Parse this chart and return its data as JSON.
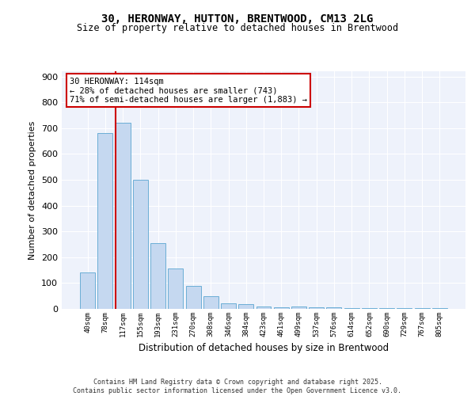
{
  "title_line1": "30, HERONWAY, HUTTON, BRENTWOOD, CM13 2LG",
  "title_line2": "Size of property relative to detached houses in Brentwood",
  "xlabel": "Distribution of detached houses by size in Brentwood",
  "ylabel": "Number of detached properties",
  "bar_color": "#c5d8f0",
  "bar_edge_color": "#6baed6",
  "categories": [
    "40sqm",
    "78sqm",
    "117sqm",
    "155sqm",
    "193sqm",
    "231sqm",
    "270sqm",
    "308sqm",
    "346sqm",
    "384sqm",
    "423sqm",
    "461sqm",
    "499sqm",
    "537sqm",
    "576sqm",
    "614sqm",
    "652sqm",
    "690sqm",
    "729sqm",
    "767sqm",
    "805sqm"
  ],
  "values": [
    140,
    680,
    720,
    500,
    255,
    157,
    88,
    50,
    20,
    18,
    10,
    7,
    10,
    7,
    5,
    3,
    2,
    3,
    2,
    2,
    3
  ],
  "vline_color": "#cc0000",
  "annotation_text": "30 HERONWAY: 114sqm\n← 28% of detached houses are smaller (743)\n71% of semi-detached houses are larger (1,883) →",
  "annotation_box_color": "#cc0000",
  "ylim": [
    0,
    920
  ],
  "yticks": [
    0,
    100,
    200,
    300,
    400,
    500,
    600,
    700,
    800,
    900
  ],
  "bg_color": "#eef2fb",
  "footer": "Contains HM Land Registry data © Crown copyright and database right 2025.\nContains public sector information licensed under the Open Government Licence v3.0."
}
